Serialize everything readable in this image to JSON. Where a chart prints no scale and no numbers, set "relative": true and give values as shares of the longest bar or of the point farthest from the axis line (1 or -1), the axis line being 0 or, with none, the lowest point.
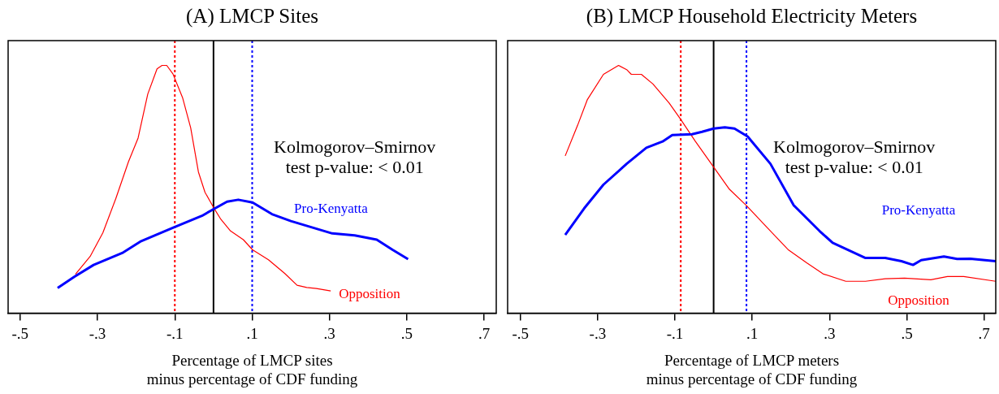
{
  "chart_data": [
    {
      "type": "line",
      "title": "(A) LMCP Sites",
      "xlabel": "Percentage of LMCP sites\nminus percentage of CDF funding",
      "relative": true,
      "legend": false,
      "grid": false,
      "marker": "none",
      "xlim": [
        -0.531,
        0.731
      ],
      "xticks": [
        {
          "value": -0.5,
          "label": "-.5"
        },
        {
          "value": -0.3,
          "label": "-.3"
        },
        {
          "value": -0.1,
          "label": "-.1"
        },
        {
          "value": 0.1,
          "label": ".1"
        },
        {
          "value": 0.3,
          "label": ".3"
        },
        {
          "value": 0.5,
          "label": ".5"
        },
        {
          "value": 0.7,
          "label": ".7"
        }
      ],
      "series": [
        {
          "name": "Pro-Kenyatta",
          "color": "#0000ff",
          "x": [
            -0.403,
            -0.36,
            -0.31,
            -0.236,
            -0.187,
            -0.105,
            -0.03,
            0,
            0.035,
            0.064,
            0.101,
            0.151,
            0.2,
            0.307,
            0.365,
            0.422,
            0.463,
            0.503
          ],
          "values": [
            0.102,
            0.147,
            0.195,
            0.243,
            0.291,
            0.345,
            0.393,
            0.42,
            0.45,
            0.458,
            0.447,
            0.4,
            0.372,
            0.322,
            0.314,
            0.297,
            0.256,
            0.218
          ]
        },
        {
          "name": "Opposition",
          "color": "#ff0000",
          "x": [
            -0.357,
            -0.319,
            -0.286,
            -0.253,
            -0.22,
            -0.195,
            -0.17,
            -0.146,
            -0.133,
            -0.121,
            -0.105,
            -0.08,
            -0.059,
            -0.039,
            -0.022,
            0,
            0.019,
            0.044,
            0.077,
            0.101,
            0.142,
            0.184,
            0.216,
            0.241,
            0.266,
            0.303
          ],
          "values": [
            0.157,
            0.229,
            0.325,
            0.461,
            0.611,
            0.707,
            0.884,
            0.986,
            1,
            1,
            0.966,
            0.87,
            0.748,
            0.57,
            0.488,
            0.427,
            0.379,
            0.332,
            0.297,
            0.256,
            0.216,
            0.161,
            0.113,
            0.104,
            0.1,
            0.09
          ]
        }
      ],
      "ref_lines": [
        {
          "axis": "x",
          "value": -0.1,
          "color": "#ff0000",
          "line_style": "dotted"
        },
        {
          "axis": "x",
          "value": 0,
          "color": "#000000",
          "line_style": "solid"
        },
        {
          "axis": "x",
          "value": 0.1,
          "color": "#0000ff",
          "line_style": "dotted"
        }
      ],
      "annotations": [
        "Kolmogorov–Smirnov\ntest p-value: < 0.01"
      ]
    },
    {
      "type": "line",
      "title": "(B) LMCP Household Electricity Meters",
      "xlabel": "Percentage of LMCP meters\nminus percentage of CDF funding",
      "relative": true,
      "legend": false,
      "grid": false,
      "marker": "none",
      "xlim": [
        -0.533,
        0.73
      ],
      "xticks": [
        {
          "value": -0.5,
          "label": "-.5"
        },
        {
          "value": -0.3,
          "label": "-.3"
        },
        {
          "value": -0.1,
          "label": "-.1"
        },
        {
          "value": 0.1,
          "label": ".1"
        },
        {
          "value": 0.3,
          "label": ".3"
        },
        {
          "value": 0.5,
          "label": ".5"
        },
        {
          "value": 0.7,
          "label": ".7"
        }
      ],
      "series": [
        {
          "name": "Pro-Kenyatta",
          "color": "#0000ff",
          "x": [
            -0.384,
            -0.335,
            -0.285,
            -0.225,
            -0.174,
            -0.132,
            -0.107,
            -0.056,
            -0.03,
            0,
            0.029,
            0.054,
            0.088,
            0.147,
            0.207,
            0.274,
            0.308,
            0.393,
            0.444,
            0.486,
            0.516,
            0.537,
            0.596,
            0.63,
            0.664,
            0.73
          ],
          "values": [
            0.316,
            0.423,
            0.519,
            0.603,
            0.668,
            0.693,
            0.719,
            0.722,
            0.732,
            0.745,
            0.75,
            0.745,
            0.713,
            0.603,
            0.436,
            0.332,
            0.284,
            0.223,
            0.223,
            0.21,
            0.195,
            0.214,
            0.229,
            0.219,
            0.22,
            0.21
          ]
        },
        {
          "name": "Opposition",
          "color": "#ff0000",
          "x": [
            -0.384,
            -0.352,
            -0.327,
            -0.285,
            -0.246,
            -0.225,
            -0.213,
            -0.187,
            -0.157,
            -0.115,
            -0.086,
            -0.047,
            0,
            0.041,
            0.084,
            0.139,
            0.194,
            0.24,
            0.283,
            0.342,
            0.393,
            0.444,
            0.494,
            0.562,
            0.605,
            0.647,
            0.73
          ],
          "values": [
            0.635,
            0.758,
            0.861,
            0.964,
            1,
            0.983,
            0.964,
            0.964,
            0.925,
            0.848,
            0.784,
            0.693,
            0.59,
            0.5,
            0.436,
            0.345,
            0.255,
            0.204,
            0.159,
            0.129,
            0.129,
            0.139,
            0.142,
            0.135,
            0.148,
            0.148,
            0.129
          ]
        }
      ],
      "ref_lines": [
        {
          "axis": "x",
          "value": -0.085,
          "color": "#ff0000",
          "line_style": "dotted"
        },
        {
          "axis": "x",
          "value": 0,
          "color": "#000000",
          "line_style": "solid"
        },
        {
          "axis": "x",
          "value": 0.085,
          "color": "#0000ff",
          "line_style": "dotted"
        }
      ],
      "annotations": [
        "Kolmogorov–Smirnov\ntest p-value: < 0.01"
      ]
    }
  ]
}
